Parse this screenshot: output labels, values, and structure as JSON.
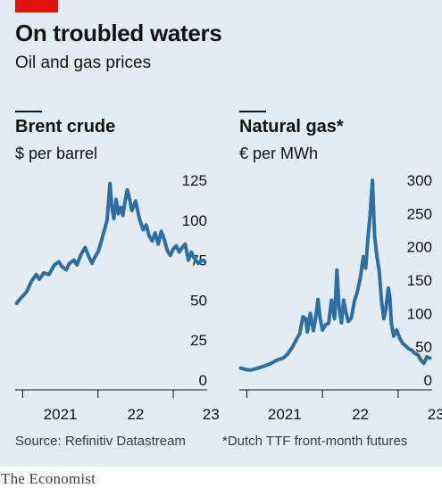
{
  "header": {
    "title": "On troubled waters",
    "subtitle": "Oil and gas prices"
  },
  "footer": {
    "source": "Source: Refinitiv Datastream",
    "note": "*Dutch TTF front-month futures",
    "brand": "The Economist"
  },
  "colors": {
    "accent": "#e3120b",
    "line": "#2e6fa3",
    "panel": "#e4ecf3"
  },
  "chart_data": [
    {
      "type": "line",
      "title": "Brent crude",
      "ylabel": "$ per barrel",
      "ylim": [
        0,
        125
      ],
      "yticks": [
        0,
        25,
        50,
        75,
        100,
        125
      ],
      "xlim": [
        2020.9,
        2023.45
      ],
      "xticks": [
        {
          "value": 2021.0,
          "label": ""
        },
        {
          "value": 2021.5,
          "label": "2021"
        },
        {
          "value": 2022.0,
          "label": ""
        },
        {
          "value": 2022.5,
          "label": "22"
        },
        {
          "value": 2023.0,
          "label": ""
        },
        {
          "value": 2023.5,
          "label": "23"
        }
      ],
      "series": [
        {
          "values": [
            [
              2020.92,
              48
            ],
            [
              2020.97,
              51
            ],
            [
              2021.05,
              55
            ],
            [
              2021.12,
              62
            ],
            [
              2021.18,
              66
            ],
            [
              2021.22,
              63
            ],
            [
              2021.28,
              67
            ],
            [
              2021.35,
              66
            ],
            [
              2021.42,
              72
            ],
            [
              2021.48,
              74
            ],
            [
              2021.52,
              71
            ],
            [
              2021.58,
              69
            ],
            [
              2021.62,
              73
            ],
            [
              2021.68,
              75
            ],
            [
              2021.72,
              72
            ],
            [
              2021.78,
              79
            ],
            [
              2021.83,
              83
            ],
            [
              2021.88,
              77
            ],
            [
              2021.92,
              73
            ],
            [
              2021.96,
              77
            ],
            [
              2022.0,
              80
            ],
            [
              2022.04,
              86
            ],
            [
              2022.08,
              93
            ],
            [
              2022.12,
              100
            ],
            [
              2022.16,
              123
            ],
            [
              2022.18,
              110
            ],
            [
              2022.21,
              101
            ],
            [
              2022.24,
              113
            ],
            [
              2022.27,
              104
            ],
            [
              2022.3,
              108
            ],
            [
              2022.33,
              103
            ],
            [
              2022.36,
              112
            ],
            [
              2022.39,
              119
            ],
            [
              2022.42,
              113
            ],
            [
              2022.45,
              106
            ],
            [
              2022.5,
              112
            ],
            [
              2022.55,
              101
            ],
            [
              2022.6,
              94
            ],
            [
              2022.64,
              97
            ],
            [
              2022.68,
              90
            ],
            [
              2022.72,
              87
            ],
            [
              2022.76,
              92
            ],
            [
              2022.8,
              85
            ],
            [
              2022.84,
              93
            ],
            [
              2022.88,
              88
            ],
            [
              2022.92,
              81
            ],
            [
              2022.96,
              78
            ],
            [
              2023.0,
              82
            ],
            [
              2023.04,
              84
            ],
            [
              2023.08,
              80
            ],
            [
              2023.12,
              83
            ],
            [
              2023.16,
              85
            ],
            [
              2023.2,
              75
            ],
            [
              2023.24,
              80
            ],
            [
              2023.28,
              76
            ],
            [
              2023.33,
              73
            ],
            [
              2023.38,
              75
            ],
            [
              2023.42,
              74
            ]
          ]
        }
      ]
    },
    {
      "type": "line",
      "title": "Natural gas*",
      "ylabel": "€ per MWh",
      "ylim": [
        0,
        300
      ],
      "yticks": [
        0,
        50,
        100,
        150,
        200,
        250,
        300
      ],
      "xlim": [
        2020.9,
        2023.45
      ],
      "xticks": [
        {
          "value": 2021.0,
          "label": ""
        },
        {
          "value": 2021.5,
          "label": "2021"
        },
        {
          "value": 2022.0,
          "label": ""
        },
        {
          "value": 2022.5,
          "label": "22"
        },
        {
          "value": 2023.0,
          "label": ""
        },
        {
          "value": 2023.5,
          "label": "23"
        }
      ],
      "series": [
        {
          "values": [
            [
              2020.92,
              18
            ],
            [
              2020.98,
              16
            ],
            [
              2021.05,
              15
            ],
            [
              2021.12,
              17
            ],
            [
              2021.2,
              20
            ],
            [
              2021.3,
              24
            ],
            [
              2021.4,
              30
            ],
            [
              2021.48,
              33
            ],
            [
              2021.54,
              39
            ],
            [
              2021.6,
              49
            ],
            [
              2021.66,
              62
            ],
            [
              2021.7,
              70
            ],
            [
              2021.74,
              95
            ],
            [
              2021.78,
              92
            ],
            [
              2021.8,
              72
            ],
            [
              2021.84,
              100
            ],
            [
              2021.88,
              74
            ],
            [
              2021.91,
              94
            ],
            [
              2021.94,
              121
            ],
            [
              2021.97,
              92
            ],
            [
              2022.0,
              75
            ],
            [
              2022.04,
              83
            ],
            [
              2022.08,
              85
            ],
            [
              2022.12,
              120
            ],
            [
              2022.16,
              92
            ],
            [
              2022.19,
              165
            ],
            [
              2022.22,
              108
            ],
            [
              2022.25,
              86
            ],
            [
              2022.28,
              120
            ],
            [
              2022.31,
              102
            ],
            [
              2022.34,
              88
            ],
            [
              2022.38,
              93
            ],
            [
              2022.42,
              118
            ],
            [
              2022.46,
              132
            ],
            [
              2022.5,
              153
            ],
            [
              2022.54,
              185
            ],
            [
              2022.57,
              168
            ],
            [
              2022.6,
              212
            ],
            [
              2022.63,
              248
            ],
            [
              2022.66,
              300
            ],
            [
              2022.69,
              215
            ],
            [
              2022.72,
              185
            ],
            [
              2022.75,
              164
            ],
            [
              2022.78,
              120
            ],
            [
              2022.81,
              92
            ],
            [
              2022.84,
              108
            ],
            [
              2022.87,
              138
            ],
            [
              2022.89,
              125
            ],
            [
              2022.91,
              85
            ],
            [
              2022.94,
              66
            ],
            [
              2022.98,
              75
            ],
            [
              2023.02,
              63
            ],
            [
              2023.06,
              55
            ],
            [
              2023.1,
              51
            ],
            [
              2023.14,
              47
            ],
            [
              2023.18,
              45
            ],
            [
              2023.22,
              40
            ],
            [
              2023.26,
              38
            ],
            [
              2023.3,
              30
            ],
            [
              2023.34,
              25
            ],
            [
              2023.38,
              35
            ],
            [
              2023.42,
              33
            ]
          ]
        }
      ]
    }
  ]
}
